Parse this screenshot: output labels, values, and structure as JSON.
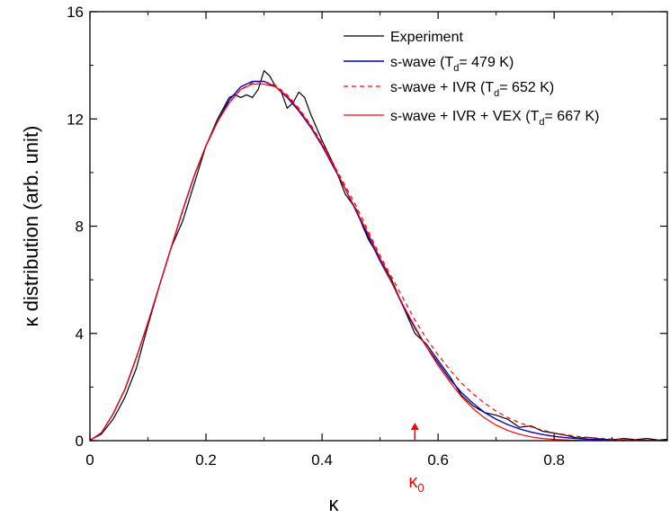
{
  "chart_data": {
    "type": "line",
    "title": "",
    "xlabel": "κ",
    "ylabel": "κ distribution (arb. unit)",
    "xlim": [
      0,
      0.995
    ],
    "ylim": [
      0,
      16
    ],
    "x_ticks": [
      0,
      0.2,
      0.4,
      0.6,
      0.8
    ],
    "x_tick_labels": [
      "0",
      "0.2",
      "0.4",
      "0.6",
      "0.8"
    ],
    "y_ticks": [
      0,
      4,
      8,
      12,
      16
    ],
    "y_tick_labels": [
      "0",
      "4",
      "8",
      "12",
      "16"
    ],
    "grid": false,
    "legend_position": "top-right",
    "annotation": {
      "x": 0.56,
      "label": "κ",
      "subscript": "0",
      "color": "#ff0000"
    },
    "series": [
      {
        "name": "Experiment",
        "legend_main": "Experiment",
        "legend_sub": "",
        "legend_tail": "",
        "color": "#000000",
        "dashed": false,
        "stroke": 1.2,
        "x": [
          0,
          0.02,
          0.04,
          0.06,
          0.08,
          0.1,
          0.12,
          0.14,
          0.16,
          0.18,
          0.2,
          0.22,
          0.24,
          0.25,
          0.26,
          0.27,
          0.28,
          0.29,
          0.3,
          0.31,
          0.32,
          0.33,
          0.34,
          0.35,
          0.36,
          0.37,
          0.38,
          0.4,
          0.42,
          0.44,
          0.46,
          0.47,
          0.48,
          0.5,
          0.52,
          0.54,
          0.56,
          0.58,
          0.6,
          0.62,
          0.64,
          0.66,
          0.68,
          0.7,
          0.72,
          0.74,
          0.76,
          0.78,
          0.8,
          0.82,
          0.84,
          0.86,
          0.88,
          0.9,
          0.92,
          0.94,
          0.96,
          0.98,
          0.995
        ],
        "y": [
          0.02,
          0.25,
          0.8,
          1.6,
          2.7,
          4.3,
          5.8,
          7.2,
          8.2,
          9.6,
          11.0,
          12.0,
          12.8,
          12.9,
          12.8,
          12.9,
          12.8,
          13.1,
          13.8,
          13.6,
          13.2,
          13.0,
          12.4,
          12.6,
          13.0,
          12.8,
          12.2,
          11.2,
          10.3,
          9.2,
          8.6,
          8.0,
          7.5,
          6.8,
          6.0,
          5.0,
          4.0,
          3.6,
          3.0,
          2.4,
          1.7,
          1.3,
          1.05,
          0.95,
          0.8,
          0.5,
          0.55,
          0.35,
          0.28,
          0.2,
          0.1,
          0.12,
          0.06,
          0.03,
          0.08,
          0.04,
          0.08,
          0.02,
          0.05
        ]
      },
      {
        "name": "s-wave (Td= 479 K)",
        "legend_main": "s-wave (T",
        "legend_sub": "d",
        "legend_tail": "= 479 K)",
        "color": "#0000cc",
        "dashed": false,
        "stroke": 1.4,
        "x": [
          0,
          0.02,
          0.04,
          0.06,
          0.08,
          0.1,
          0.12,
          0.14,
          0.16,
          0.18,
          0.2,
          0.22,
          0.24,
          0.26,
          0.28,
          0.3,
          0.32,
          0.34,
          0.36,
          0.38,
          0.4,
          0.42,
          0.44,
          0.46,
          0.48,
          0.5,
          0.52,
          0.54,
          0.56,
          0.58,
          0.6,
          0.62,
          0.64,
          0.66,
          0.68,
          0.7,
          0.72,
          0.74,
          0.76,
          0.78,
          0.8,
          0.82,
          0.84,
          0.86,
          0.88,
          0.9,
          0.92,
          0.94,
          0.96,
          0.98,
          0.995
        ],
        "y": [
          0.0,
          0.3,
          1.0,
          1.9,
          3.1,
          4.4,
          5.8,
          7.2,
          8.6,
          9.9,
          11.0,
          11.9,
          12.7,
          13.2,
          13.4,
          13.4,
          13.2,
          12.8,
          12.3,
          11.7,
          11.0,
          10.2,
          9.4,
          8.5,
          7.6,
          6.7,
          5.9,
          5.0,
          4.2,
          3.5,
          2.9,
          2.3,
          1.8,
          1.4,
          1.05,
          0.8,
          0.6,
          0.44,
          0.32,
          0.23,
          0.16,
          0.11,
          0.08,
          0.05,
          0.035,
          0.024,
          0.016,
          0.01,
          0.007,
          0.004,
          0.003
        ]
      },
      {
        "name": "s-wave + IVR (Td= 652 K)",
        "legend_main": "s-wave + IVR (T",
        "legend_sub": "d",
        "legend_tail": "= 652 K)",
        "color": "#ff0000",
        "dashed": true,
        "stroke": 1.2,
        "x": [
          0,
          0.02,
          0.04,
          0.06,
          0.08,
          0.1,
          0.12,
          0.14,
          0.16,
          0.18,
          0.2,
          0.22,
          0.24,
          0.26,
          0.28,
          0.3,
          0.32,
          0.34,
          0.36,
          0.38,
          0.4,
          0.42,
          0.44,
          0.46,
          0.48,
          0.5,
          0.52,
          0.54,
          0.56,
          0.58,
          0.6,
          0.62,
          0.64,
          0.66,
          0.68,
          0.7,
          0.72,
          0.74,
          0.76,
          0.78,
          0.8,
          0.82,
          0.84,
          0.86,
          0.88,
          0.9,
          0.92,
          0.94,
          0.96,
          0.98,
          0.995
        ],
        "y": [
          0.0,
          0.3,
          1.0,
          1.9,
          3.1,
          4.4,
          5.8,
          7.2,
          8.6,
          9.9,
          11.0,
          11.9,
          12.6,
          13.1,
          13.35,
          13.4,
          13.25,
          12.9,
          12.4,
          11.8,
          11.1,
          10.3,
          9.5,
          8.7,
          7.8,
          6.9,
          6.1,
          5.3,
          4.5,
          3.8,
          3.2,
          2.65,
          2.15,
          1.75,
          1.4,
          1.1,
          0.86,
          0.67,
          0.52,
          0.39,
          0.29,
          0.22,
          0.16,
          0.12,
          0.085,
          0.06,
          0.043,
          0.03,
          0.021,
          0.015,
          0.011
        ]
      },
      {
        "name": "s-wave + IVR + VEX (Td= 667 K)",
        "legend_main": "s-wave + IVR + VEX (T",
        "legend_sub": "d",
        "legend_tail": "= 667 K)",
        "color": "#ff0000",
        "dashed": false,
        "stroke": 1.2,
        "x": [
          0,
          0.02,
          0.04,
          0.06,
          0.08,
          0.1,
          0.12,
          0.14,
          0.16,
          0.18,
          0.2,
          0.22,
          0.24,
          0.26,
          0.28,
          0.3,
          0.32,
          0.34,
          0.36,
          0.38,
          0.4,
          0.42,
          0.44,
          0.46,
          0.48,
          0.5,
          0.52,
          0.54,
          0.56,
          0.58,
          0.6,
          0.62,
          0.64,
          0.66,
          0.68,
          0.7,
          0.72,
          0.74,
          0.76,
          0.78,
          0.8,
          0.82,
          0.84,
          0.86,
          0.88,
          0.9,
          0.92,
          0.94,
          0.96,
          0.98,
          0.995
        ],
        "y": [
          0.0,
          0.3,
          1.0,
          1.9,
          3.1,
          4.4,
          5.8,
          7.2,
          8.6,
          9.9,
          11.0,
          11.9,
          12.6,
          13.1,
          13.3,
          13.3,
          13.2,
          12.85,
          12.35,
          11.75,
          11.05,
          10.25,
          9.4,
          8.55,
          7.7,
          6.8,
          5.9,
          5.05,
          4.25,
          3.5,
          2.8,
          2.2,
          1.65,
          1.2,
          0.85,
          0.58,
          0.38,
          0.24,
          0.14,
          0.08,
          0.045,
          0.024,
          0.012,
          0.006,
          0.003,
          0.0015,
          0.0008,
          0.0004,
          0.0002,
          0.0001,
          0.0
        ]
      }
    ]
  }
}
